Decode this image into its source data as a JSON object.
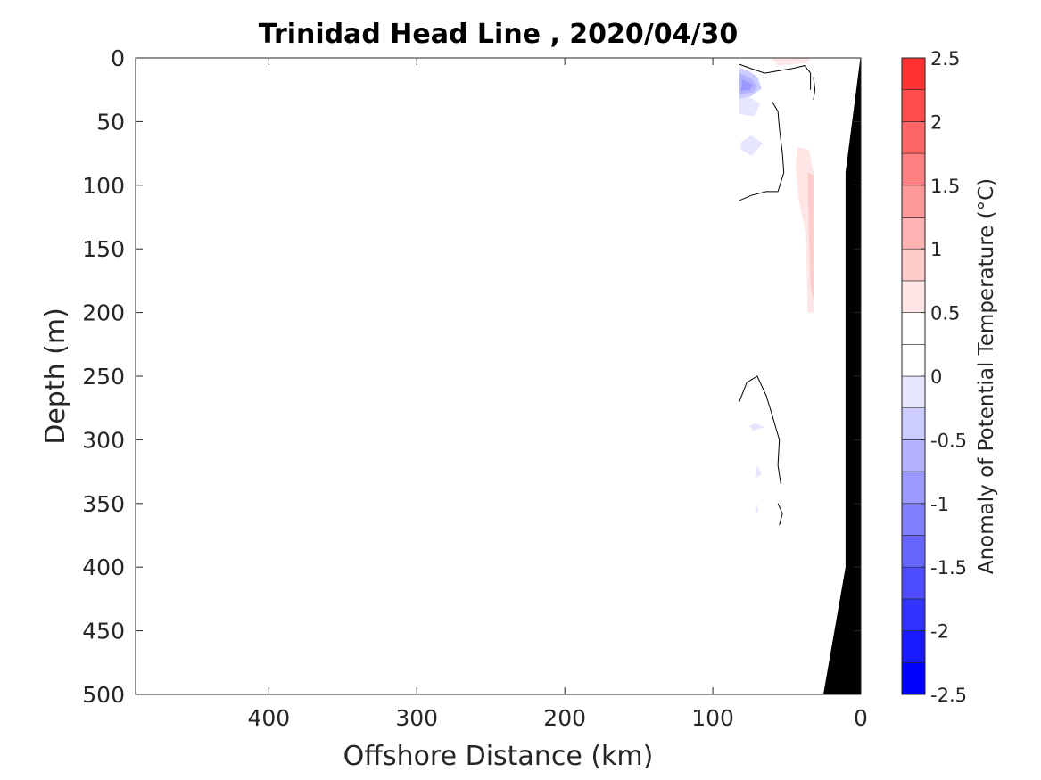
{
  "chart_data": {
    "type": "heatmap",
    "subtype": "filled-contour-section",
    "title": "Trinidad Head Line , 2020/04/30",
    "xlabel": "Offshore Distance (km)",
    "ylabel": "Depth (m)",
    "xlim": [
      490,
      0
    ],
    "ylim": [
      0,
      500
    ],
    "x_reversed": true,
    "y_reversed": true,
    "xticks": [
      400,
      300,
      200,
      100,
      0
    ],
    "xtick_labels": [
      "400",
      "300",
      "200",
      "100",
      "0"
    ],
    "yticks": [
      0,
      50,
      100,
      150,
      200,
      250,
      300,
      350,
      400,
      450,
      500
    ],
    "ytick_labels": [
      "0",
      "50",
      "100",
      "150",
      "200",
      "250",
      "300",
      "350",
      "400",
      "450",
      "500"
    ],
    "colorbar": {
      "label": "Anomaly of Potential Temperature (°C)",
      "range": [
        -2.5,
        2.5
      ],
      "ticks": [
        -2.5,
        -2,
        -1.5,
        -1,
        -0.5,
        0,
        0.5,
        1,
        1.5,
        2,
        2.5
      ],
      "tick_labels": [
        "-2.5",
        "-2",
        "-1.5",
        "-1",
        "-0.5",
        "0",
        "0.5",
        "1",
        "1.5",
        "2",
        "2.5"
      ],
      "level_step": 0.25,
      "colors": [
        "#0000ff",
        "#1a1aff",
        "#3333ff",
        "#4d4dff",
        "#6666ff",
        "#8080ff",
        "#9999ff",
        "#b3b3ff",
        "#ccccff",
        "#e6e6ff",
        "#ffffff",
        "#ffffff",
        "#ffe6e6",
        "#ffcccc",
        "#ffb3b3",
        "#ff9999",
        "#ff8080",
        "#ff6666",
        "#ff4d4d",
        "#ff3333",
        "#ff1a1a",
        "#ff0000"
      ]
    },
    "anomaly_patches": [
      {
        "value": 0.125,
        "polygon": [
          [
            82,
            44
          ],
          [
            60,
            44
          ],
          [
            55,
            60
          ],
          [
            52,
            130
          ],
          [
            60,
            145
          ],
          [
            72,
            155
          ],
          [
            82,
            160
          ],
          [
            82,
            220
          ],
          [
            70,
            225
          ],
          [
            52,
            245
          ],
          [
            48,
            290
          ],
          [
            32,
            290
          ],
          [
            32,
            65
          ],
          [
            55,
            45
          ]
        ]
      },
      {
        "value": 0.125,
        "polygon": [
          [
            82,
            160
          ],
          [
            82,
            220
          ],
          [
            70,
            215
          ],
          [
            60,
            200
          ],
          [
            62,
            180
          ]
        ]
      },
      {
        "value": 0.125,
        "polygon": [
          [
            42,
            265
          ],
          [
            36,
            252
          ],
          [
            32,
            255
          ],
          [
            32,
            300
          ],
          [
            42,
            300
          ]
        ]
      },
      {
        "value": 0.125,
        "polygon": [
          [
            50,
            14
          ],
          [
            36,
            14
          ],
          [
            32,
            26
          ],
          [
            36,
            38
          ],
          [
            48,
            32
          ]
        ]
      },
      {
        "value": 0.375,
        "polygon": [
          [
            47,
            55
          ],
          [
            33,
            52
          ],
          [
            32,
            75
          ],
          [
            32,
            195
          ],
          [
            36,
            220
          ],
          [
            42,
            240
          ],
          [
            45,
            260
          ],
          [
            44,
            300
          ],
          [
            40,
            300
          ],
          [
            38,
            262
          ],
          [
            34,
            235
          ],
          [
            32,
            210
          ],
          [
            38,
            190
          ],
          [
            39,
            150
          ],
          [
            40,
            100
          ],
          [
            45,
            70
          ]
        ]
      },
      {
        "value": 0.375,
        "polygon": [
          [
            60,
            143
          ],
          [
            52,
            130
          ],
          [
            45,
            140
          ],
          [
            42,
            170
          ],
          [
            52,
            185
          ],
          [
            65,
            170
          ]
        ]
      },
      {
        "value": 0.625,
        "polygon": [
          [
            43,
            70
          ],
          [
            35,
            72
          ],
          [
            32,
            90
          ],
          [
            32,
            200
          ],
          [
            36,
            200
          ],
          [
            37,
            140
          ],
          [
            42,
            110
          ],
          [
            44,
            85
          ]
        ]
      },
      {
        "value": 0.875,
        "polygon": [
          [
            36,
            90
          ],
          [
            32,
            92
          ],
          [
            32,
            190
          ],
          [
            34,
            180
          ],
          [
            35,
            140
          ]
        ]
      },
      {
        "value": 0.375,
        "polygon": [
          [
            80,
            0
          ],
          [
            30,
            0
          ],
          [
            30,
            5
          ],
          [
            80,
            8
          ]
        ]
      },
      {
        "value": 0.625,
        "polygon": [
          [
            60,
            0
          ],
          [
            34,
            0
          ],
          [
            36,
            4
          ],
          [
            56,
            6
          ]
        ]
      },
      {
        "value": -0.125,
        "polygon": [
          [
            82,
            30
          ],
          [
            82,
            44
          ],
          [
            72,
            46
          ],
          [
            68,
            36
          ],
          [
            76,
            30
          ]
        ]
      },
      {
        "value": -0.375,
        "polygon": [
          [
            82,
            8
          ],
          [
            82,
            32
          ],
          [
            74,
            30
          ],
          [
            67,
            24
          ],
          [
            70,
            15
          ],
          [
            76,
            10
          ]
        ]
      },
      {
        "value": -0.625,
        "polygon": [
          [
            82,
            12
          ],
          [
            82,
            29
          ],
          [
            73,
            27
          ],
          [
            70,
            22
          ],
          [
            74,
            16
          ]
        ]
      },
      {
        "value": -0.875,
        "polygon": [
          [
            80,
            17
          ],
          [
            81,
            26
          ],
          [
            75,
            25
          ],
          [
            73,
            21
          ]
        ]
      },
      {
        "value": -0.125,
        "polygon": [
          [
            74,
            61
          ],
          [
            66,
            67
          ],
          [
            74,
            77
          ],
          [
            81,
            72
          ],
          [
            81,
            66
          ]
        ]
      },
      {
        "value": -0.125,
        "polygon": [
          [
            72,
            287
          ],
          [
            65,
            290
          ],
          [
            73,
            293
          ],
          [
            75,
            289
          ]
        ]
      },
      {
        "value": -0.125,
        "polygon": [
          [
            70,
            320
          ],
          [
            67,
            327
          ],
          [
            71,
            330
          ]
        ]
      },
      {
        "value": -0.125,
        "polygon": [
          [
            70,
            350
          ],
          [
            69,
            357
          ],
          [
            71,
            357
          ]
        ]
      }
    ],
    "zero_contours": [
      [
        [
          82,
          5
        ],
        [
          75,
          8
        ],
        [
          65,
          12
        ],
        [
          55,
          10
        ],
        [
          45,
          8
        ],
        [
          38,
          6
        ],
        [
          34,
          12
        ],
        [
          34,
          25
        ]
      ],
      [
        [
          32,
          15
        ],
        [
          31,
          25
        ],
        [
          32,
          33
        ]
      ],
      [
        [
          60,
          34
        ],
        [
          56,
          42
        ],
        [
          55,
          55
        ],
        [
          53,
          75
        ],
        [
          52,
          90
        ],
        [
          56,
          105
        ],
        [
          64,
          105
        ],
        [
          74,
          108
        ],
        [
          82,
          112
        ]
      ],
      [
        [
          82,
          270
        ],
        [
          77,
          255
        ],
        [
          70,
          250
        ],
        [
          64,
          265
        ],
        [
          60,
          280
        ],
        [
          55,
          300
        ],
        [
          56,
          320
        ],
        [
          54,
          335
        ]
      ],
      [
        [
          56,
          350
        ],
        [
          53,
          358
        ],
        [
          55,
          367
        ]
      ]
    ],
    "bathymetry": [
      [
        0,
        0
      ],
      [
        10,
        90
      ],
      [
        10,
        400
      ],
      [
        25,
        500
      ],
      [
        0,
        500
      ]
    ]
  }
}
